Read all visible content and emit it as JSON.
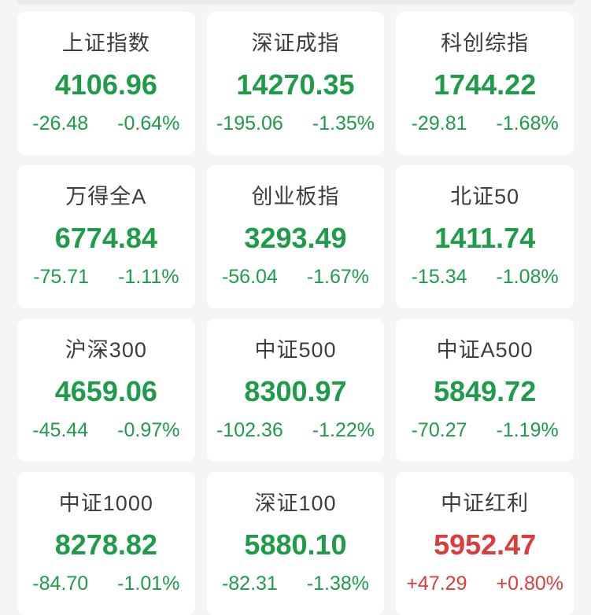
{
  "page": {
    "background_color": "#f5f5f7",
    "card_color": "#ffffff",
    "top_strip_color": "#ebebee"
  },
  "colors": {
    "up": "#de3b3c",
    "down": "#1f9c49",
    "title_text": "#3d3d3d"
  },
  "indices": [
    {
      "name": "上证指数",
      "value": "4106.96",
      "change": "-26.48",
      "change_pct": "-0.64%",
      "direction": "down"
    },
    {
      "name": "深证成指",
      "value": "14270.35",
      "change": "-195.06",
      "change_pct": "-1.35%",
      "direction": "down"
    },
    {
      "name": "科创综指",
      "value": "1744.22",
      "change": "-29.81",
      "change_pct": "-1.68%",
      "direction": "down"
    },
    {
      "name": "万得全A",
      "value": "6774.84",
      "change": "-75.71",
      "change_pct": "-1.11%",
      "direction": "down"
    },
    {
      "name": "创业板指",
      "value": "3293.49",
      "change": "-56.04",
      "change_pct": "-1.67%",
      "direction": "down"
    },
    {
      "name": "北证50",
      "value": "1411.74",
      "change": "-15.34",
      "change_pct": "-1.08%",
      "direction": "down"
    },
    {
      "name": "沪深300",
      "value": "4659.06",
      "change": "-45.44",
      "change_pct": "-0.97%",
      "direction": "down"
    },
    {
      "name": "中证500",
      "value": "8300.97",
      "change": "-102.36",
      "change_pct": "-1.22%",
      "direction": "down"
    },
    {
      "name": "中证A500",
      "value": "5849.72",
      "change": "-70.27",
      "change_pct": "-1.19%",
      "direction": "down"
    },
    {
      "name": "中证1000",
      "value": "8278.82",
      "change": "-84.70",
      "change_pct": "-1.01%",
      "direction": "down"
    },
    {
      "name": "深证100",
      "value": "5880.10",
      "change": "-82.31",
      "change_pct": "-1.38%",
      "direction": "down"
    },
    {
      "name": "中证红利",
      "value": "5952.47",
      "change": "+47.29",
      "change_pct": "+0.80%",
      "direction": "up"
    }
  ]
}
